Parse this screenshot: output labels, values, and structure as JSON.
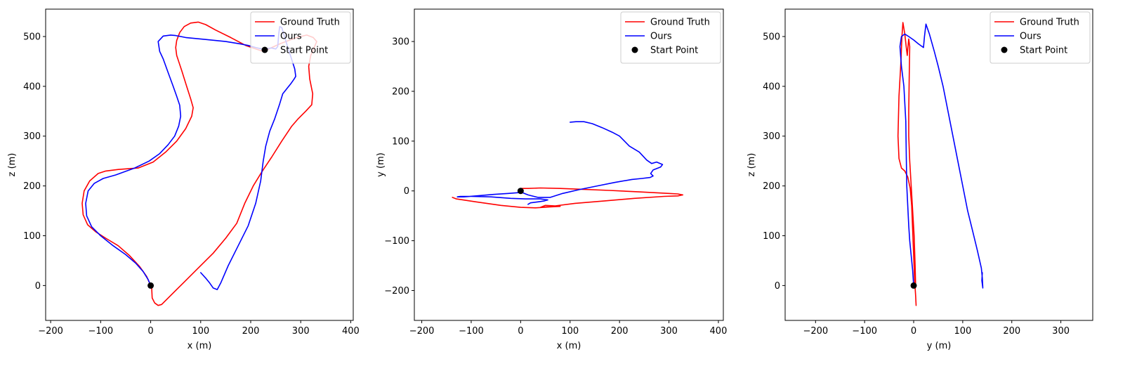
{
  "colors": {
    "ground_truth": "#ff0000",
    "ours": "#0000ff",
    "start_point": "#000000"
  },
  "legend_entries": [
    "Ground Truth",
    "Ours",
    "Start Point"
  ],
  "chart_data": [
    {
      "type": "line",
      "xlabel": "x (m)",
      "ylabel": "z (m)",
      "xlim": [
        -210,
        405
      ],
      "ylim": [
        -70,
        555
      ],
      "xticks": [
        -200,
        -100,
        0,
        100,
        200,
        300,
        400
      ],
      "yticks": [
        0,
        100,
        200,
        300,
        400,
        500
      ],
      "legend": "top-right",
      "series": [
        {
          "name": "Ground Truth",
          "color": "#ff0000",
          "x": [
            0,
            2,
            3,
            8,
            15,
            22,
            40,
            65,
            95,
            125,
            150,
            172,
            188,
            205,
            222,
            242,
            262,
            282,
            295,
            310,
            322,
            324,
            318,
            316,
            320,
            327,
            332,
            325,
            312,
            292,
            260,
            225,
            190,
            160,
            130,
            110,
            95,
            80,
            67,
            58,
            52,
            50,
            52,
            62,
            72,
            80,
            85,
            82,
            70,
            52,
            30,
            5,
            -25,
            -65,
            -90,
            -105,
            -122,
            -133,
            -137,
            -135,
            -126,
            -110,
            -90,
            -65,
            -42,
            -22,
            -8,
            0
          ],
          "y": [
            0,
            -5,
            -25,
            -35,
            -40,
            -38,
            -20,
            5,
            35,
            65,
            95,
            125,
            165,
            200,
            228,
            258,
            290,
            320,
            335,
            350,
            363,
            385,
            415,
            440,
            462,
            478,
            490,
            498,
            503,
            498,
            486,
            470,
            482,
            498,
            513,
            524,
            529,
            527,
            520,
            508,
            492,
            478,
            462,
            432,
            400,
            375,
            357,
            340,
            315,
            290,
            268,
            248,
            236,
            233,
            230,
            225,
            210,
            190,
            165,
            142,
            122,
            108,
            95,
            80,
            60,
            38,
            18,
            0
          ]
        },
        {
          "name": "Ours",
          "color": "#0000ff",
          "x": [
            100,
            110,
            118,
            125,
            133,
            140,
            155,
            175,
            195,
            210,
            220,
            225,
            230,
            238,
            248,
            258,
            264,
            272,
            280,
            287,
            290,
            288,
            280,
            272,
            266,
            262,
            258,
            256,
            254,
            250,
            242,
            232,
            222,
            210,
            195,
            180,
            150,
            110,
            70,
            50,
            40,
            25,
            15,
            18,
            25,
            34,
            45,
            52,
            58,
            60,
            56,
            48,
            35,
            18,
            -3,
            -32,
            -70,
            -95,
            -113,
            -125,
            -130,
            -128,
            -118,
            -100,
            -75,
            -50,
            -30,
            -15,
            -5,
            0
          ],
          "y": [
            26,
            15,
            5,
            -5,
            -8,
            5,
            40,
            80,
            120,
            165,
            210,
            250,
            280,
            310,
            335,
            365,
            385,
            395,
            405,
            415,
            420,
            435,
            460,
            485,
            505,
            518,
            520,
            505,
            480,
            475,
            477,
            476,
            475,
            478,
            482,
            485,
            490,
            494,
            498,
            502,
            503,
            501,
            490,
            470,
            455,
            430,
            400,
            380,
            362,
            340,
            320,
            300,
            283,
            265,
            250,
            236,
            222,
            215,
            205,
            190,
            165,
            140,
            118,
            100,
            80,
            62,
            45,
            28,
            12,
            0
          ]
        }
      ],
      "start_point": {
        "x": 0,
        "y": 0
      }
    },
    {
      "type": "line",
      "xlabel": "x (m)",
      "ylabel": "y (m)",
      "xlim": [
        -215,
        410
      ],
      "ylim": [
        -260,
        365
      ],
      "xticks": [
        -200,
        -100,
        0,
        100,
        200,
        300,
        400
      ],
      "yticks": [
        -200,
        -100,
        0,
        100,
        200,
        300
      ],
      "legend": "top-right",
      "series": [
        {
          "name": "Ground Truth",
          "color": "#ff0000",
          "x": [
            0,
            15,
            40,
            80,
            130,
            180,
            240,
            300,
            318,
            328,
            318,
            290,
            230,
            170,
            110,
            70,
            52,
            40,
            50,
            70,
            80,
            60,
            30,
            0,
            -40,
            -90,
            -130,
            -138
          ],
          "y": [
            5,
            5,
            6,
            5,
            3,
            1,
            -2,
            -5,
            -6,
            -8,
            -10,
            -11,
            -15,
            -20,
            -25,
            -30,
            -32,
            -33,
            -29,
            -30,
            -31,
            -32,
            -34,
            -33,
            -29,
            -22,
            -16,
            -13
          ]
        },
        {
          "name": "Ours",
          "color": "#0000ff",
          "x": [
            100,
            112,
            128,
            145,
            165,
            185,
            200,
            210,
            220,
            240,
            255,
            265,
            275,
            287,
            283,
            268,
            263,
            268,
            262,
            245,
            225,
            190,
            155,
            120,
            85,
            60,
            35,
            15,
            2,
            -25,
            -55,
            -90,
            -115,
            -128,
            -122,
            -100,
            -60,
            -20,
            10,
            40,
            55,
            48,
            35,
            20,
            15
          ],
          "y": [
            138,
            139,
            139,
            135,
            127,
            118,
            110,
            100,
            90,
            78,
            62,
            55,
            58,
            53,
            48,
            42,
            35,
            30,
            27,
            25,
            23,
            17,
            10,
            3,
            -5,
            -13,
            -13,
            -8,
            -3,
            -5,
            -7,
            -10,
            -12,
            -12,
            -11,
            -11,
            -12,
            -15,
            -16,
            -16,
            -18,
            -20,
            -22,
            -24,
            -27
          ]
        }
      ],
      "start_point": {
        "x": 0,
        "y": 0
      }
    },
    {
      "type": "line",
      "xlabel": "y (m)",
      "ylabel": "z (m)",
      "xlim": [
        -262,
        365
      ],
      "ylim": [
        -70,
        555
      ],
      "xticks": [
        -200,
        -100,
        0,
        100,
        200,
        300
      ],
      "yticks": [
        0,
        100,
        200,
        300,
        400,
        500
      ],
      "legend": "top-right",
      "series": [
        {
          "name": "Ground Truth",
          "color": "#ff0000",
          "x": [
            5,
            4,
            2,
            0,
            -2,
            -4,
            -7,
            -12,
            -18,
            -25,
            -30,
            -32,
            -30,
            -26,
            -24,
            -22,
            -18,
            -15,
            -13,
            -12,
            -10,
            -8,
            -9,
            -10,
            -10,
            -8,
            -5,
            -2,
            1,
            3,
            4
          ],
          "y": [
            -40,
            -20,
            10,
            60,
            110,
            160,
            195,
            218,
            230,
            236,
            255,
            300,
            380,
            450,
            500,
            528,
            505,
            478,
            462,
            475,
            495,
            480,
            420,
            350,
            300,
            250,
            200,
            150,
            100,
            40,
            0
          ]
        },
        {
          "name": "Ours",
          "color": "#0000ff",
          "x": [
            0,
            -2,
            -5,
            -8,
            -10,
            -12,
            -14,
            -15,
            -16,
            -20,
            -25,
            -28,
            -25,
            -18,
            -10,
            0,
            10,
            20,
            22,
            25,
            32,
            42,
            50,
            60,
            70,
            80,
            90,
            100,
            110,
            120,
            130,
            138,
            140,
            141,
            139,
            140
          ],
          "y": [
            0,
            30,
            60,
            90,
            120,
            160,
            200,
            260,
            330,
            400,
            440,
            480,
            500,
            505,
            500,
            493,
            485,
            478,
            500,
            525,
            505,
            470,
            440,
            400,
            350,
            300,
            250,
            200,
            150,
            110,
            70,
            35,
            15,
            -5,
            10,
            26
          ]
        }
      ],
      "start_point": {
        "x": 0,
        "y": 0
      }
    }
  ]
}
